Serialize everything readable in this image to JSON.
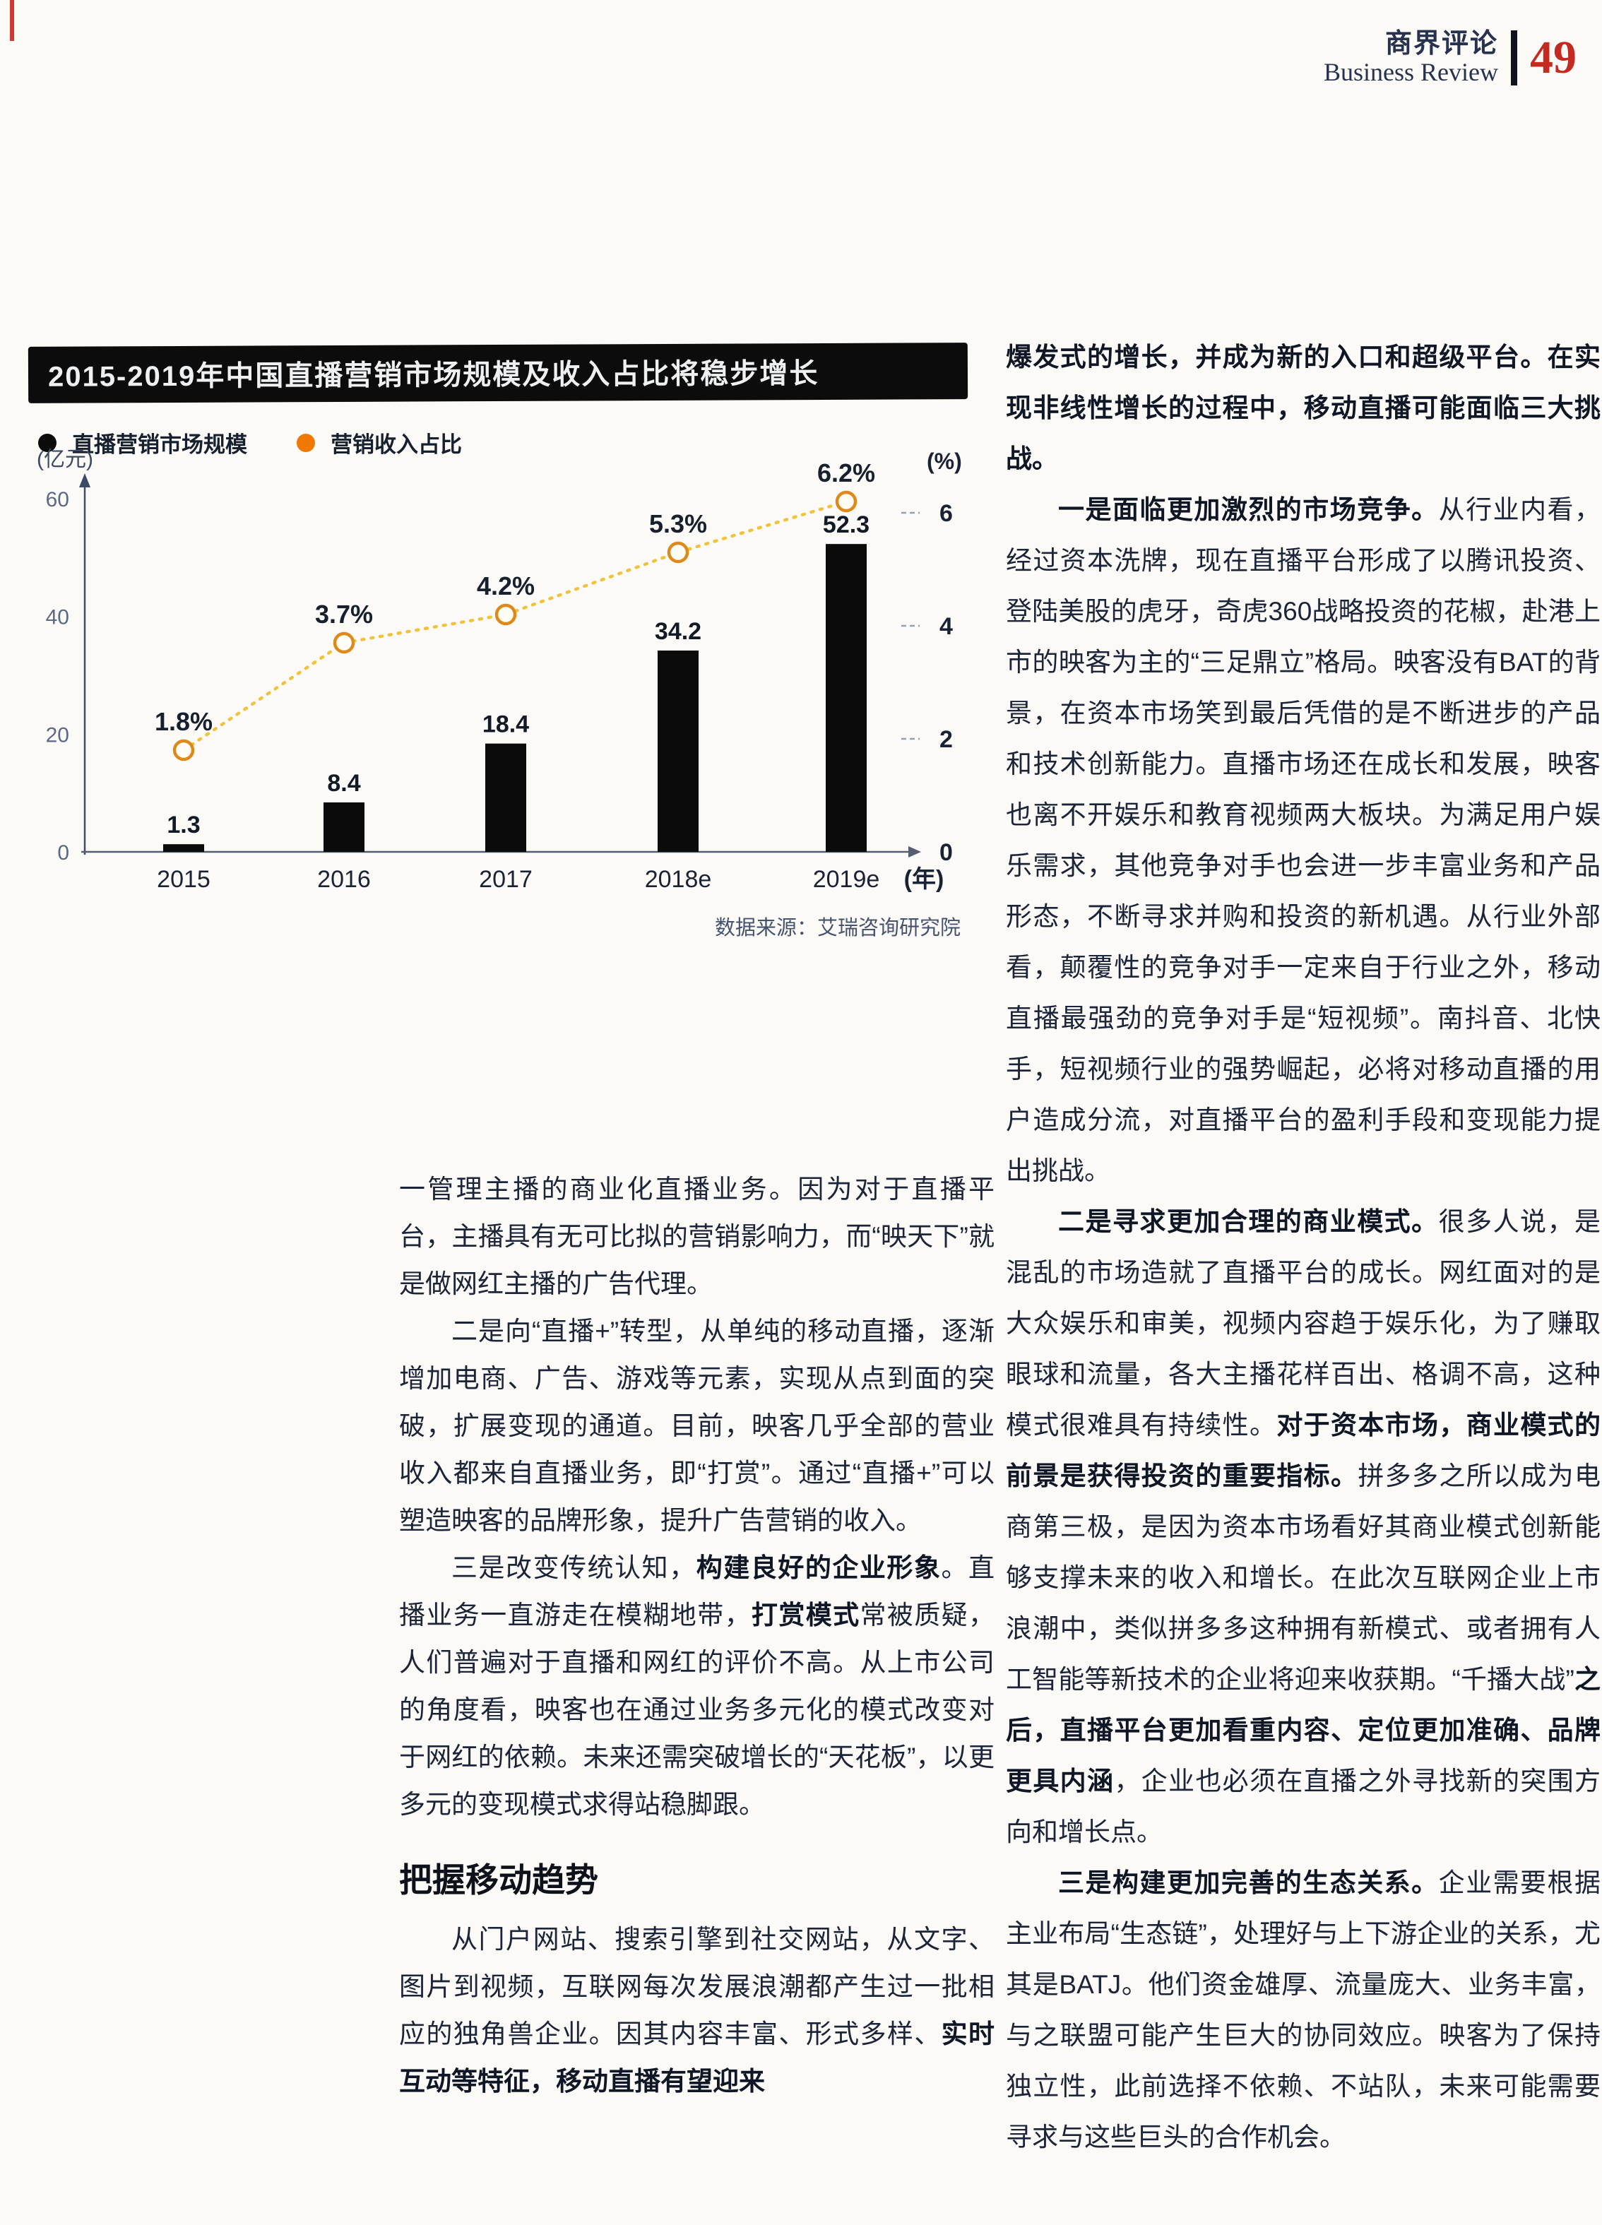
{
  "header": {
    "magazine_cn": "商界评论",
    "magazine_en": "Business Review",
    "page_number": "49"
  },
  "chart": {
    "legend": [
      {
        "label": "直播营销市场规模",
        "color": "#0b0b0b"
      },
      {
        "label": "营销收入占比",
        "color": "#f07800"
      }
    ],
    "source": "数据来源：艾瑞咨询研究院"
  },
  "chart_data": {
    "type": "bar",
    "title": "2015-2019年中国直播营销市场规模及收入占比将稳步增长",
    "categories": [
      "2015",
      "2016",
      "2017",
      "2018e",
      "2019e"
    ],
    "series": [
      {
        "name": "直播营销市场规模",
        "type": "bar",
        "axis": "left",
        "unit": "亿元",
        "values": [
          1.3,
          8.4,
          18.4,
          34.2,
          52.3
        ],
        "labels": [
          "1.3",
          "8.4",
          "18.4",
          "34.2",
          "52.3"
        ],
        "color": "#0b0b0b"
      },
      {
        "name": "营销收入占比",
        "type": "line",
        "axis": "right",
        "unit": "%",
        "values": [
          1.8,
          3.7,
          4.2,
          5.3,
          6.2
        ],
        "labels": [
          "1.8%",
          "3.7%",
          "4.2%",
          "5.3%",
          "6.2%"
        ],
        "color": "#f1c33b",
        "marker_color": "#dd8a1b"
      }
    ],
    "left_axis": {
      "label": "(亿元)",
      "ticks": [
        60,
        40,
        20,
        0
      ],
      "max": 60
    },
    "right_axis": {
      "label": "(%)",
      "ticks": [
        6,
        4,
        2,
        0
      ],
      "max": 6
    },
    "x_label": "(年)",
    "grid": false,
    "legend_position": "top-left",
    "source": "数据来源：艾瑞咨询研究院"
  },
  "left_column": {
    "blocks": [
      {
        "type": "para",
        "indent": false,
        "segments": [
          {
            "text": "一管理主播的商业化直播业务。因为对于直播平台，主播具有无可比拟的营销影响力，而“映天下”就是做网红主播的广告代理。",
            "bold": false
          }
        ]
      },
      {
        "type": "para",
        "indent": true,
        "segments": [
          {
            "text": "二是向“直播+”转型，从单纯的移动直播，逐渐增加电商、广告、游戏等元素，实现从点到面的突破，扩展变现的通道。目前，映客几乎全部的营业收入都来自直播业务，即“打赏”。通过“直播+”可以塑造映客的品牌形象，提升广告营销的收入。",
            "bold": false
          }
        ]
      },
      {
        "type": "para",
        "indent": true,
        "segments": [
          {
            "text": "三是改变传统认知，",
            "bold": false
          },
          {
            "text": "构建良好的企业形象",
            "bold": true
          },
          {
            "text": "。直播业务一直游走在模糊地带，",
            "bold": false
          },
          {
            "text": "打赏模式",
            "bold": true
          },
          {
            "text": "常被质疑，人们普遍对于直播和网红的评价不高。从上市公司的角度看，映客也在通过业务多元化的模式改变对于网红的依赖。未来还需突破增长的“天花板”，以更多元的变现模式求得站稳脚跟。",
            "bold": false
          }
        ]
      },
      {
        "type": "heading",
        "text": "把握移动趋势"
      },
      {
        "type": "para",
        "indent": true,
        "segments": [
          {
            "text": "从门户网站、搜索引擎到社交网站，从文字、图片到视频，互联网每次发展浪潮都产生过一批相应的独角兽企业。因其内容丰富、形式多样、",
            "bold": false
          },
          {
            "text": "实时互动等特征，移动直播有望迎来",
            "bold": true
          }
        ]
      }
    ]
  },
  "right_column": {
    "blocks": [
      {
        "type": "para",
        "indent": false,
        "segments": [
          {
            "text": "爆发式的增长，并成为新的入口和超级平台。在实现非线性增长的过程中，移动直播可能面临三大挑战。",
            "bold": true
          }
        ]
      },
      {
        "type": "para",
        "indent": true,
        "segments": [
          {
            "text": "一是面临更加激烈的市场竞争。",
            "bold": true
          },
          {
            "text": "从行业内看，经过资本洗牌，现在直播平台形成了以腾讯投资、登陆美股的虎牙，奇虎360战略投资的花椒，赴港上市的映客为主的“三足鼎立”格局。映客没有BAT的背景，在资本市场笑到最后凭借的是不断进步的产品和技术创新能力。直播市场还在成长和发展，映客也离不开娱乐和教育视频两大板块。为满足用户娱乐需求，其他竞争对手也会进一步丰富业务和产品形态，不断寻求并购和投资的新机遇。从行业外部看，颠覆性的竞争对手一定来自于行业之外，移动直播最强劲的竞争对手是“短视频”。南抖音、北快手，短视频行业的强势崛起，必将对移动直播的用户造成分流，对直播平台的盈利手段和变现能力提出挑战。",
            "bold": false
          }
        ]
      },
      {
        "type": "para",
        "indent": true,
        "segments": [
          {
            "text": "二是寻求更加合理的商业模式。",
            "bold": true
          },
          {
            "text": "很多人说，是混乱的市场造就了直播平台的成长。网红面对的是大众娱乐和审美，视频内容趋于娱乐化，为了赚取眼球和流量，各大主播花样百出、格调不高，这种模式很难具有持续性。",
            "bold": false
          },
          {
            "text": "对于资本市场，商业模式的前景是获得投资的重要指标。",
            "bold": true
          },
          {
            "text": "拼多多之所以成为电商第三极，是因为资本市场看好其商业模式创新能够支撑未来的收入和增长。在此次互联网企业上市浪潮中，类似拼多多这种拥有新模式、或者拥有人工智能等新技术的企业将迎来收获期。“千播大战”",
            "bold": false
          },
          {
            "text": "之后，直播平台更加看重内容、定位更加准确、品牌更具内涵",
            "bold": true
          },
          {
            "text": "，企业也必须在直播之外寻找新的突围方向和增长点。",
            "bold": false
          }
        ]
      },
      {
        "type": "para",
        "indent": true,
        "segments": [
          {
            "text": "三是构建更加完善的生态关系。",
            "bold": true
          },
          {
            "text": "企业需要根据主业布局“生态链”，处理好与上下游企业的关系，尤其是BATJ。他们资金雄厚、流量庞大、业务丰富，与之联盟可能产生巨大的协同效应。映客为了保持独立性，此前选择不依赖、不站队，未来可能需要寻求与这些巨头的合作机会。",
            "bold": false
          }
        ]
      }
    ]
  }
}
